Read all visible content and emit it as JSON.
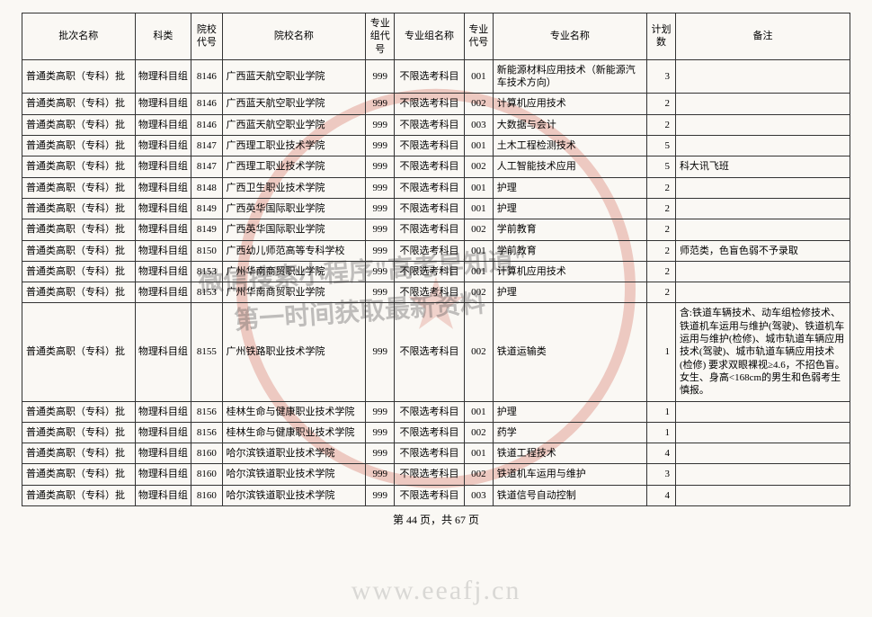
{
  "headers": {
    "batch": "批次名称",
    "subject": "科类",
    "school_code": "院校代号",
    "school_name": "院校名称",
    "group_code": "专业组代号",
    "group_name": "专业组名称",
    "major_code": "专业代号",
    "major_name": "专业名称",
    "plan": "计划数",
    "remark": "备注"
  },
  "rows": [
    {
      "batch": "普通类高职（专科）批",
      "subject": "物理科目组",
      "school_code": "8146",
      "school_name": "广西蓝天航空职业学院",
      "group_code": "999",
      "group_name": "不限选考科目",
      "major_code": "001",
      "major_name": "新能源材料应用技术（新能源汽车技术方向）",
      "plan": "3",
      "remark": ""
    },
    {
      "batch": "普通类高职（专科）批",
      "subject": "物理科目组",
      "school_code": "8146",
      "school_name": "广西蓝天航空职业学院",
      "group_code": "999",
      "group_name": "不限选考科目",
      "major_code": "002",
      "major_name": "计算机应用技术",
      "plan": "2",
      "remark": ""
    },
    {
      "batch": "普通类高职（专科）批",
      "subject": "物理科目组",
      "school_code": "8146",
      "school_name": "广西蓝天航空职业学院",
      "group_code": "999",
      "group_name": "不限选考科目",
      "major_code": "003",
      "major_name": "大数据与会计",
      "plan": "2",
      "remark": ""
    },
    {
      "batch": "普通类高职（专科）批",
      "subject": "物理科目组",
      "school_code": "8147",
      "school_name": "广西理工职业技术学院",
      "group_code": "999",
      "group_name": "不限选考科目",
      "major_code": "001",
      "major_name": "土木工程检测技术",
      "plan": "5",
      "remark": ""
    },
    {
      "batch": "普通类高职（专科）批",
      "subject": "物理科目组",
      "school_code": "8147",
      "school_name": "广西理工职业技术学院",
      "group_code": "999",
      "group_name": "不限选考科目",
      "major_code": "002",
      "major_name": "人工智能技术应用",
      "plan": "5",
      "remark": "科大讯飞班"
    },
    {
      "batch": "普通类高职（专科）批",
      "subject": "物理科目组",
      "school_code": "8148",
      "school_name": "广西卫生职业技术学院",
      "group_code": "999",
      "group_name": "不限选考科目",
      "major_code": "001",
      "major_name": "护理",
      "plan": "2",
      "remark": ""
    },
    {
      "batch": "普通类高职（专科）批",
      "subject": "物理科目组",
      "school_code": "8149",
      "school_name": "广西英华国际职业学院",
      "group_code": "999",
      "group_name": "不限选考科目",
      "major_code": "001",
      "major_name": "护理",
      "plan": "2",
      "remark": ""
    },
    {
      "batch": "普通类高职（专科）批",
      "subject": "物理科目组",
      "school_code": "8149",
      "school_name": "广西英华国际职业学院",
      "group_code": "999",
      "group_name": "不限选考科目",
      "major_code": "002",
      "major_name": "学前教育",
      "plan": "2",
      "remark": ""
    },
    {
      "batch": "普通类高职（专科）批",
      "subject": "物理科目组",
      "school_code": "8150",
      "school_name": "广西幼儿师范高等专科学校",
      "group_code": "999",
      "group_name": "不限选考科目",
      "major_code": "001",
      "major_name": "学前教育",
      "plan": "2",
      "remark": "师范类，色盲色弱不予录取"
    },
    {
      "batch": "普通类高职（专科）批",
      "subject": "物理科目组",
      "school_code": "8153",
      "school_name": "广州华南商贸职业学院",
      "group_code": "999",
      "group_name": "不限选考科目",
      "major_code": "001",
      "major_name": "计算机应用技术",
      "plan": "2",
      "remark": ""
    },
    {
      "batch": "普通类高职（专科）批",
      "subject": "物理科目组",
      "school_code": "8153",
      "school_name": "广州华南商贸职业学院",
      "group_code": "999",
      "group_name": "不限选考科目",
      "major_code": "002",
      "major_name": "护理",
      "plan": "2",
      "remark": ""
    },
    {
      "batch": "普通类高职（专科）批",
      "subject": "物理科目组",
      "school_code": "8155",
      "school_name": "广州铁路职业技术学院",
      "group_code": "999",
      "group_name": "不限选考科目",
      "major_code": "002",
      "major_name": "铁道运输类",
      "plan": "1",
      "remark": "含:铁道车辆技术、动车组检修技术、铁道机车运用与维护(驾驶)、铁道机车运用与维护(检修)、城市轨道车辆应用技术(驾驶)、城市轨道车辆应用技术(检修) 要求双眼裸视≥4.6，不招色盲。女生、身高<168cm的男生和色弱考生慎报。"
    },
    {
      "batch": "普通类高职（专科）批",
      "subject": "物理科目组",
      "school_code": "8156",
      "school_name": "桂林生命与健康职业技术学院",
      "group_code": "999",
      "group_name": "不限选考科目",
      "major_code": "001",
      "major_name": "护理",
      "plan": "1",
      "remark": ""
    },
    {
      "batch": "普通类高职（专科）批",
      "subject": "物理科目组",
      "school_code": "8156",
      "school_name": "桂林生命与健康职业技术学院",
      "group_code": "999",
      "group_name": "不限选考科目",
      "major_code": "002",
      "major_name": "药学",
      "plan": "1",
      "remark": ""
    },
    {
      "batch": "普通类高职（专科）批",
      "subject": "物理科目组",
      "school_code": "8160",
      "school_name": "哈尔滨铁道职业技术学院",
      "group_code": "999",
      "group_name": "不限选考科目",
      "major_code": "001",
      "major_name": "铁道工程技术",
      "plan": "4",
      "remark": ""
    },
    {
      "batch": "普通类高职（专科）批",
      "subject": "物理科目组",
      "school_code": "8160",
      "school_name": "哈尔滨铁道职业技术学院",
      "group_code": "999",
      "group_name": "不限选考科目",
      "major_code": "002",
      "major_name": "铁道机车运用与维护",
      "plan": "3",
      "remark": ""
    },
    {
      "batch": "普通类高职（专科）批",
      "subject": "物理科目组",
      "school_code": "8160",
      "school_name": "哈尔滨铁道职业技术学院",
      "group_code": "999",
      "group_name": "不限选考科目",
      "major_code": "003",
      "major_name": "铁道信号自动控制",
      "plan": "4",
      "remark": ""
    }
  ],
  "pager": {
    "current": "44",
    "total": "67",
    "prefix": "第 ",
    "mid": " 页，共 ",
    "suffix": " 页"
  },
  "watermarks": {
    "line1": "微信搜索小程序\"高考早知道\"",
    "line2": "第一时间获取最新资料",
    "url": "www.eeafj.cn"
  },
  "style": {
    "seal_color": "rgba(200,60,40,0.25)",
    "border_color": "#333",
    "font_size_cell": 11
  }
}
